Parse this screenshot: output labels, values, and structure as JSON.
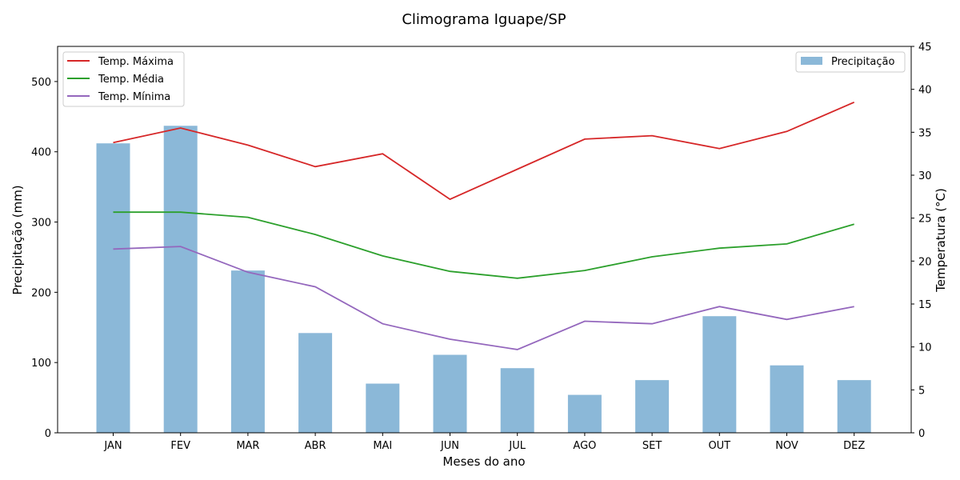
{
  "chart_data": {
    "type": "bar",
    "title": "Climograma Iguape/SP",
    "xlabel": "Meses do ano",
    "ylabel_left": "Precipitação (mm)",
    "ylabel_right": "Temperatura (°C)",
    "categories": [
      "JAN",
      "FEV",
      "MAR",
      "ABR",
      "MAI",
      "JUN",
      "JUL",
      "AGO",
      "SET",
      "OUT",
      "NOV",
      "DEZ"
    ],
    "ylim_left": [
      0,
      550
    ],
    "yticks_left": [
      0,
      100,
      200,
      300,
      400,
      500
    ],
    "ylim_right": [
      0,
      45
    ],
    "yticks_right": [
      0,
      5,
      10,
      15,
      20,
      25,
      30,
      35,
      40,
      45
    ],
    "grid": false,
    "bar_series": {
      "name": "Precipitação",
      "color": "#8bb8d8",
      "axis": "left",
      "values": [
        412,
        437,
        231,
        142,
        70,
        111,
        92,
        54,
        75,
        166,
        96,
        75
      ]
    },
    "line_series": [
      {
        "name": "Temp. Máxima",
        "color": "#d62728",
        "axis": "right",
        "values": [
          33.8,
          35.5,
          33.5,
          31.0,
          32.5,
          27.2,
          30.7,
          34.2,
          34.6,
          33.1,
          35.1,
          38.5
        ]
      },
      {
        "name": "Temp. Média",
        "color": "#2ca02c",
        "axis": "right",
        "values": [
          25.7,
          25.7,
          25.1,
          23.1,
          20.6,
          18.8,
          18.0,
          18.9,
          20.5,
          21.5,
          22.0,
          24.3
        ]
      },
      {
        "name": "Temp. Mínima",
        "color": "#9467bd",
        "axis": "right",
        "values": [
          21.4,
          21.7,
          18.7,
          17.0,
          12.7,
          10.9,
          9.7,
          13.0,
          12.7,
          14.7,
          13.2,
          14.7
        ]
      }
    ],
    "legend_lines_position": "upper-left",
    "legend_bars_position": "upper-right"
  }
}
